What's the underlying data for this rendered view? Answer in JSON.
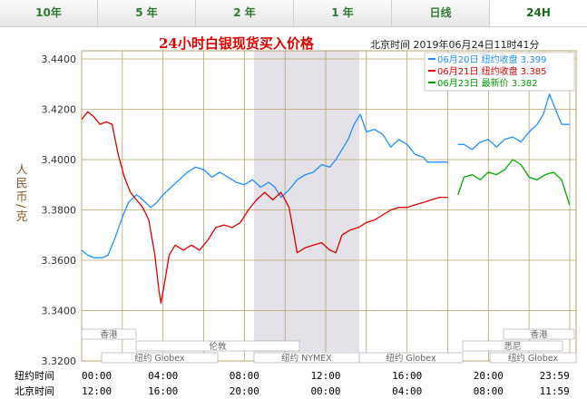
{
  "tabs": [
    {
      "label": "10年",
      "active": false
    },
    {
      "label": "5 年",
      "active": false
    },
    {
      "label": "2 年",
      "active": false
    },
    {
      "label": "1 年",
      "active": false
    },
    {
      "label": "日线",
      "active": false
    },
    {
      "label": "24H",
      "active": true
    }
  ],
  "chart_data": {
    "type": "line",
    "title": "24小时白银现货买入价格",
    "subtitle": "北京时间  2019年06月24日11时41分",
    "ylabel": "人民币/克",
    "ylim": [
      3.32,
      3.44
    ],
    "yticks": [
      "3.4400",
      "3.4200",
      "3.4000",
      "3.3800",
      "3.3600",
      "3.3400",
      "3.3200"
    ],
    "xticks_ny_label": "纽约时间",
    "xticks_bj_label": "北京时间",
    "xticks_ny": [
      "00:00",
      "04:00",
      "08:00",
      "12:00",
      "16:00",
      "20:00",
      "23:59"
    ],
    "xticks_bj": [
      "12:00",
      "16:00",
      "20:00",
      "00:00",
      "04:00",
      "08:00",
      "11:59"
    ],
    "grid": true,
    "legend_position": "top-right",
    "legend": [
      {
        "text": "06月20日  纽约收盘 3.399",
        "color": "#1e90ff"
      },
      {
        "text": "06月21日  纽约收盘 3.385",
        "color": "#dd0000"
      },
      {
        "text": "06月23日    最新价 3.382",
        "color": "#009900"
      }
    ],
    "sessions": {
      "row1": [
        "香港",
        "香港"
      ],
      "row2": [
        "伦敦",
        "悉尼"
      ],
      "row3": [
        "纽约 Globex",
        "纽约 NYMEX",
        "纽约 Globex",
        "纽约 Globex"
      ]
    },
    "colors": {
      "blue": "#1e90ff",
      "red": "#dd0000",
      "green": "#00aa00",
      "grid": "#b8a36a",
      "shade": "#e4e1e8"
    },
    "series": [
      {
        "name": "06月20日",
        "color": "#1e90ff",
        "points": [
          [
            0,
            3.364
          ],
          [
            0.3,
            3.362
          ],
          [
            0.6,
            3.361
          ],
          [
            1.0,
            3.361
          ],
          [
            1.3,
            3.362
          ],
          [
            1.6,
            3.368
          ],
          [
            2.0,
            3.377
          ],
          [
            2.3,
            3.383
          ],
          [
            2.7,
            3.386
          ],
          [
            3.0,
            3.384
          ],
          [
            3.4,
            3.381
          ],
          [
            3.7,
            3.383
          ],
          [
            4.0,
            3.386
          ],
          [
            4.4,
            3.389
          ],
          [
            4.8,
            3.392
          ],
          [
            5.2,
            3.395
          ],
          [
            5.6,
            3.397
          ],
          [
            6.0,
            3.396
          ],
          [
            6.4,
            3.393
          ],
          [
            6.8,
            3.395
          ],
          [
            7.2,
            3.393
          ],
          [
            7.6,
            3.391
          ],
          [
            8.0,
            3.39
          ],
          [
            8.4,
            3.392
          ],
          [
            8.8,
            3.389
          ],
          [
            9.2,
            3.391
          ],
          [
            9.5,
            3.389
          ],
          [
            9.8,
            3.385
          ],
          [
            10.2,
            3.388
          ],
          [
            10.6,
            3.392
          ],
          [
            11.0,
            3.394
          ],
          [
            11.4,
            3.395
          ],
          [
            11.8,
            3.398
          ],
          [
            12.2,
            3.397
          ],
          [
            12.5,
            3.4
          ],
          [
            12.8,
            3.404
          ],
          [
            13.1,
            3.408
          ],
          [
            13.4,
            3.414
          ],
          [
            13.7,
            3.418
          ],
          [
            14.0,
            3.411
          ],
          [
            14.4,
            3.412
          ],
          [
            14.8,
            3.41
          ],
          [
            15.2,
            3.405
          ],
          [
            15.6,
            3.408
          ],
          [
            16.0,
            3.406
          ],
          [
            16.4,
            3.402
          ],
          [
            16.8,
            3.401
          ],
          [
            17.0,
            3.399
          ],
          [
            17.5,
            3.399
          ],
          [
            18.0,
            3.399
          ]
        ]
      },
      {
        "name": "06月20日b",
        "color": "#1e90ff",
        "points": [
          [
            18.5,
            3.406
          ],
          [
            18.8,
            3.406
          ],
          [
            19.2,
            3.404
          ],
          [
            19.6,
            3.407
          ],
          [
            20.0,
            3.408
          ],
          [
            20.4,
            3.405
          ],
          [
            20.8,
            3.408
          ],
          [
            21.2,
            3.409
          ],
          [
            21.6,
            3.407
          ],
          [
            22.0,
            3.411
          ],
          [
            22.4,
            3.414
          ],
          [
            22.7,
            3.418
          ],
          [
            23.0,
            3.426
          ],
          [
            23.3,
            3.42
          ],
          [
            23.6,
            3.414
          ],
          [
            23.99,
            3.414
          ]
        ]
      },
      {
        "name": "06月21日",
        "color": "#dd0000",
        "points": [
          [
            0,
            3.416
          ],
          [
            0.3,
            3.419
          ],
          [
            0.6,
            3.417
          ],
          [
            0.9,
            3.414
          ],
          [
            1.2,
            3.415
          ],
          [
            1.5,
            3.414
          ],
          [
            1.8,
            3.402
          ],
          [
            2.1,
            3.393
          ],
          [
            2.4,
            3.387
          ],
          [
            2.7,
            3.384
          ],
          [
            3.0,
            3.381
          ],
          [
            3.3,
            3.376
          ],
          [
            3.6,
            3.362
          ],
          [
            3.8,
            3.348
          ],
          [
            3.9,
            3.343
          ],
          [
            4.1,
            3.352
          ],
          [
            4.3,
            3.362
          ],
          [
            4.6,
            3.366
          ],
          [
            5.0,
            3.364
          ],
          [
            5.4,
            3.366
          ],
          [
            5.8,
            3.364
          ],
          [
            6.2,
            3.368
          ],
          [
            6.6,
            3.373
          ],
          [
            7.0,
            3.374
          ],
          [
            7.4,
            3.373
          ],
          [
            7.8,
            3.375
          ],
          [
            8.2,
            3.38
          ],
          [
            8.6,
            3.384
          ],
          [
            9.0,
            3.387
          ],
          [
            9.4,
            3.384
          ],
          [
            9.8,
            3.387
          ],
          [
            10.2,
            3.381
          ],
          [
            10.6,
            3.363
          ],
          [
            11.0,
            3.365
          ],
          [
            11.4,
            3.366
          ],
          [
            11.8,
            3.367
          ],
          [
            12.2,
            3.364
          ],
          [
            12.5,
            3.363
          ],
          [
            12.8,
            3.37
          ],
          [
            13.2,
            3.372
          ],
          [
            13.6,
            3.373
          ],
          [
            14.0,
            3.375
          ],
          [
            14.4,
            3.376
          ],
          [
            14.8,
            3.378
          ],
          [
            15.2,
            3.38
          ],
          [
            15.6,
            3.381
          ],
          [
            16.0,
            3.381
          ],
          [
            16.4,
            3.382
          ],
          [
            16.8,
            3.383
          ],
          [
            17.2,
            3.384
          ],
          [
            17.6,
            3.385
          ],
          [
            18.0,
            3.385
          ]
        ]
      },
      {
        "name": "06月23日",
        "color": "#00aa00",
        "points": [
          [
            18.5,
            3.386
          ],
          [
            18.8,
            3.393
          ],
          [
            19.2,
            3.394
          ],
          [
            19.6,
            3.392
          ],
          [
            20.0,
            3.395
          ],
          [
            20.4,
            3.394
          ],
          [
            20.8,
            3.396
          ],
          [
            21.2,
            3.4
          ],
          [
            21.6,
            3.398
          ],
          [
            22.0,
            3.393
          ],
          [
            22.4,
            3.392
          ],
          [
            22.8,
            3.394
          ],
          [
            23.2,
            3.395
          ],
          [
            23.6,
            3.392
          ],
          [
            23.99,
            3.382
          ]
        ]
      }
    ]
  }
}
